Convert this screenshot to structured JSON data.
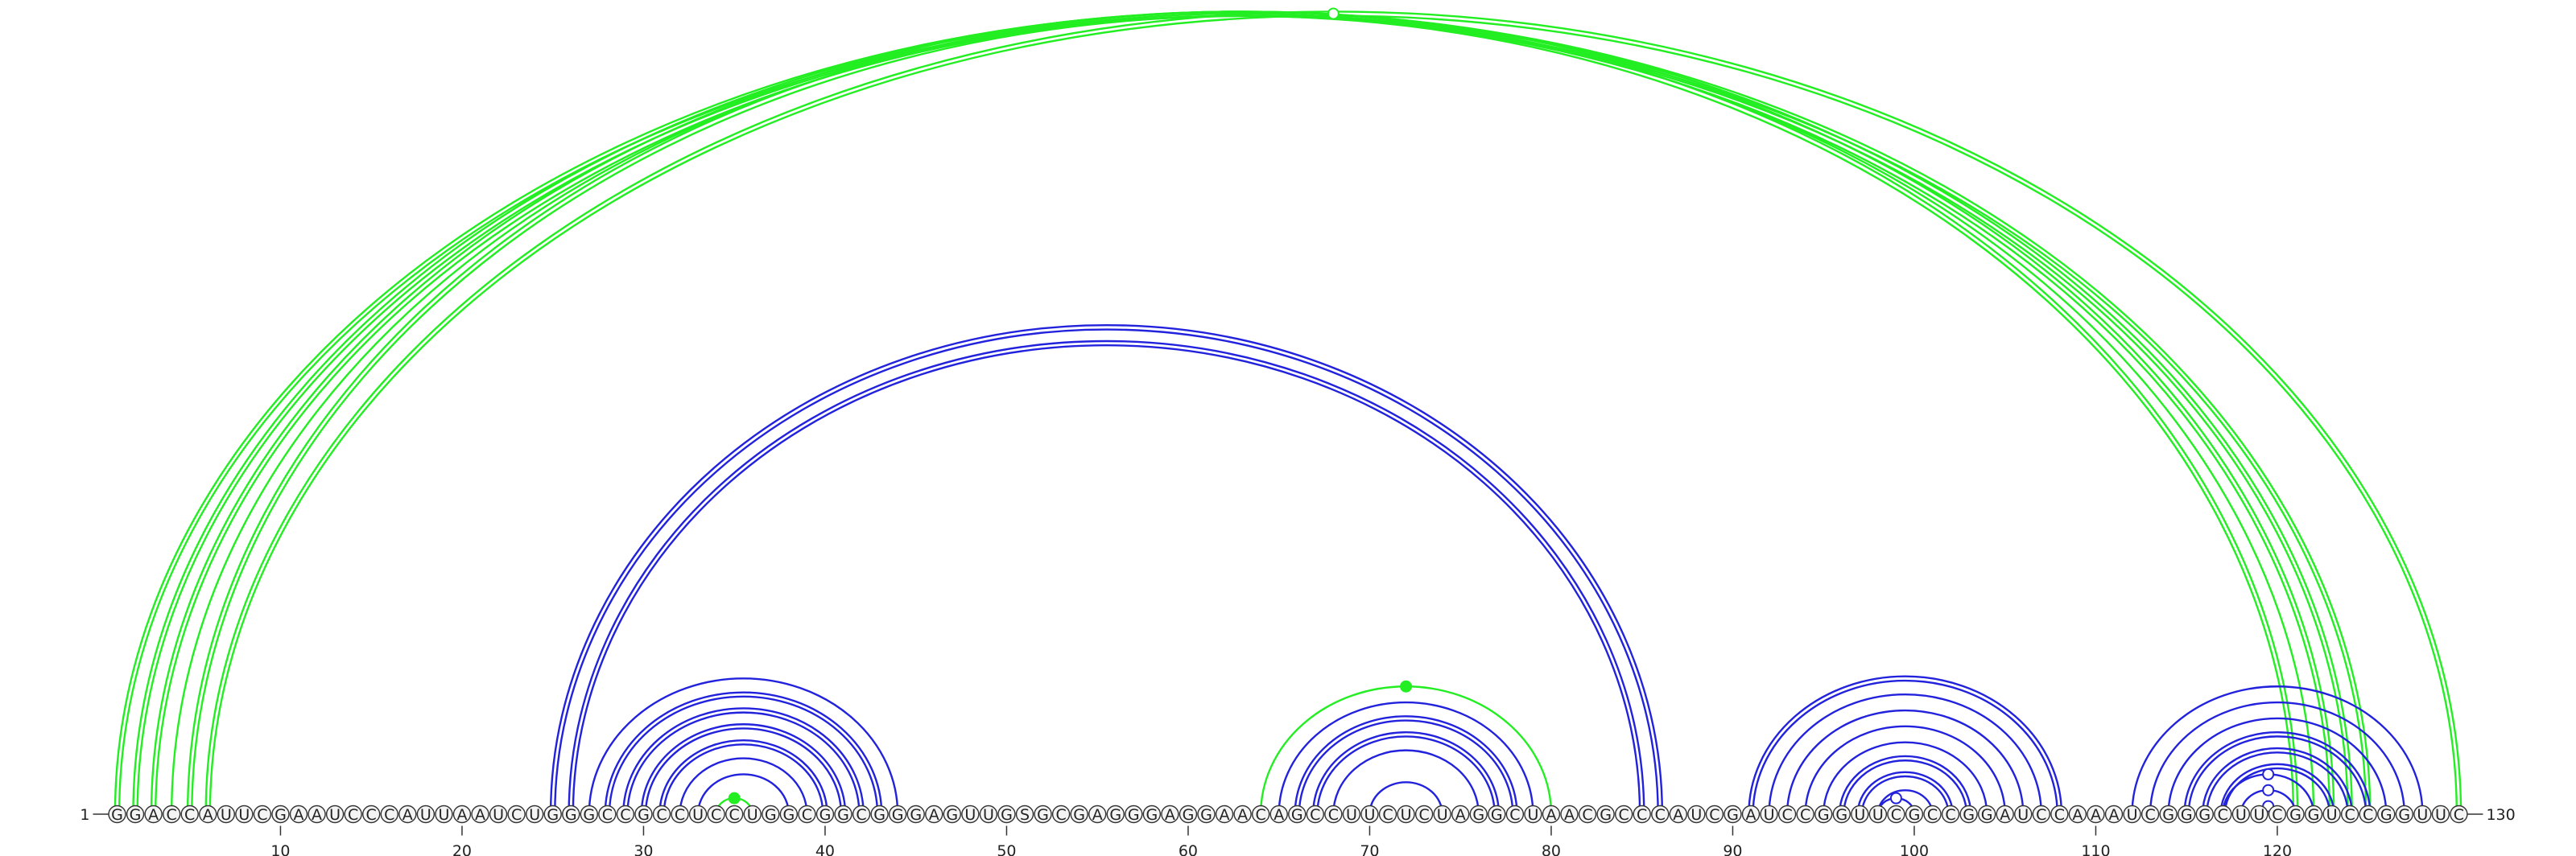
{
  "sequence": "GGACCAUUCGAAUCCCAUUAAUCUGGGCCGCCUCCUGGCGGCGGGAGUUGSGCGAGGGAGGAACAGCCUUCUCUAGGCUAACGCCCAUCGAUCCGGUUCGCCGGAUCCAAAUCGGGCUUCGGUCCGGUUC",
  "start_label": "1",
  "end_label": "130",
  "ticks": [
    "10",
    "20",
    "30",
    "40",
    "50",
    "60",
    "70",
    "80",
    "90",
    "100",
    "110",
    "120"
  ],
  "colors": {
    "green": "#22ee22",
    "blue": "#2222dd"
  },
  "arcs": [
    {
      "from": 1,
      "to": 125,
      "color": "green",
      "pairs": 2
    },
    {
      "from": 2,
      "to": 124,
      "color": "green",
      "pairs": 2
    },
    {
      "from": 3,
      "to": 123,
      "color": "green",
      "pairs": 2
    },
    {
      "from": 4,
      "to": 122,
      "color": "green",
      "pairs": 1
    },
    {
      "from": 5,
      "to": 121,
      "color": "green",
      "pairs": 2
    },
    {
      "from": 6,
      "to": 130,
      "color": "green",
      "pairs": 2,
      "marker": "hollow"
    },
    {
      "from": 25,
      "to": 86,
      "color": "blue",
      "pairs": 2
    },
    {
      "from": 26,
      "to": 85,
      "color": "blue",
      "pairs": 2
    },
    {
      "from": 27,
      "to": 44,
      "color": "blue",
      "pairs": 1
    },
    {
      "from": 28,
      "to": 43,
      "color": "blue",
      "pairs": 2
    },
    {
      "from": 29,
      "to": 42,
      "color": "blue",
      "pairs": 2
    },
    {
      "from": 30,
      "to": 41,
      "color": "blue",
      "pairs": 2
    },
    {
      "from": 31,
      "to": 40,
      "color": "blue",
      "pairs": 2
    },
    {
      "from": 32,
      "to": 39,
      "color": "blue",
      "pairs": 1
    },
    {
      "from": 33,
      "to": 38,
      "color": "blue",
      "pairs": 1
    },
    {
      "from": 34,
      "to": 36,
      "color": "green",
      "pairs": 1,
      "marker": "filled"
    },
    {
      "from": 64,
      "to": 80,
      "color": "green",
      "pairs": 1,
      "marker": "filled"
    },
    {
      "from": 65,
      "to": 79,
      "color": "blue",
      "pairs": 1
    },
    {
      "from": 66,
      "to": 78,
      "color": "blue",
      "pairs": 2
    },
    {
      "from": 67,
      "to": 77,
      "color": "blue",
      "pairs": 2
    },
    {
      "from": 68,
      "to": 76,
      "color": "blue",
      "pairs": 1
    },
    {
      "from": 70,
      "to": 74,
      "color": "blue",
      "pairs": 1
    },
    {
      "from": 91,
      "to": 108,
      "color": "blue",
      "pairs": 2
    },
    {
      "from": 92,
      "to": 107,
      "color": "blue",
      "pairs": 1
    },
    {
      "from": 93,
      "to": 106,
      "color": "blue",
      "pairs": 1
    },
    {
      "from": 94,
      "to": 105,
      "color": "blue",
      "pairs": 1
    },
    {
      "from": 95,
      "to": 104,
      "color": "blue",
      "pairs": 1
    },
    {
      "from": 96,
      "to": 103,
      "color": "blue",
      "pairs": 2
    },
    {
      "from": 97,
      "to": 102,
      "color": "blue",
      "pairs": 2
    },
    {
      "from": 98,
      "to": 101,
      "color": "blue",
      "pairs": 1
    },
    {
      "from": 98,
      "to": 100,
      "color": "blue",
      "pairs": 1,
      "marker": "hollow"
    },
    {
      "from": 112,
      "to": 128,
      "color": "blue",
      "pairs": 1
    },
    {
      "from": 113,
      "to": 127,
      "color": "blue",
      "pairs": 1
    },
    {
      "from": 114,
      "to": 126,
      "color": "blue",
      "pairs": 1
    },
    {
      "from": 115,
      "to": 125,
      "color": "blue",
      "pairs": 2
    },
    {
      "from": 116,
      "to": 124,
      "color": "blue",
      "pairs": 2
    },
    {
      "from": 117,
      "to": 123,
      "color": "blue",
      "pairs": 2
    },
    {
      "from": 117,
      "to": 122,
      "color": "blue",
      "pairs": 1,
      "marker": "hollow"
    },
    {
      "from": 118,
      "to": 121,
      "color": "blue",
      "pairs": 1,
      "marker": "hollow"
    },
    {
      "from": 119,
      "to": 120,
      "color": "blue",
      "pairs": 1,
      "marker": "hollow"
    }
  ]
}
